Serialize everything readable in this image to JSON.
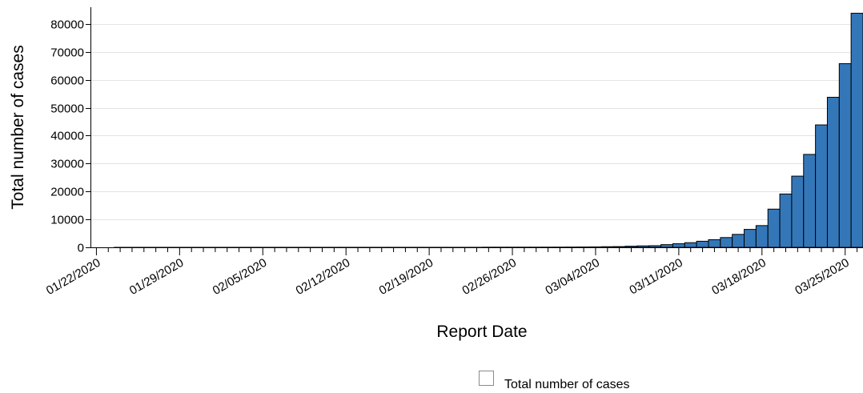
{
  "chart_data": {
    "type": "bar",
    "xlabel": "Report Date",
    "ylabel": "Total number of cases",
    "ylim": [
      0,
      86000
    ],
    "yticks": [
      0,
      10000,
      20000,
      30000,
      40000,
      50000,
      60000,
      70000,
      80000
    ],
    "xtick_labels": [
      "01/22/2020",
      "01/29/2020",
      "02/05/2020",
      "02/12/2020",
      "02/19/2020",
      "02/26/2020",
      "03/04/2020",
      "03/11/2020",
      "03/18/2020",
      "03/25/2020"
    ],
    "grid": true,
    "legend_position": "bottom-center",
    "bar_color": "#3477b9",
    "series": [
      {
        "name": "Total number of cases",
        "categories": [
          "01/22/2020",
          "01/23/2020",
          "01/24/2020",
          "01/25/2020",
          "01/26/2020",
          "01/27/2020",
          "01/28/2020",
          "01/29/2020",
          "01/30/2020",
          "01/31/2020",
          "02/01/2020",
          "02/02/2020",
          "02/03/2020",
          "02/04/2020",
          "02/05/2020",
          "02/06/2020",
          "02/07/2020",
          "02/08/2020",
          "02/09/2020",
          "02/10/2020",
          "02/11/2020",
          "02/12/2020",
          "02/13/2020",
          "02/14/2020",
          "02/15/2020",
          "02/16/2020",
          "02/17/2020",
          "02/18/2020",
          "02/19/2020",
          "02/20/2020",
          "02/21/2020",
          "02/22/2020",
          "02/23/2020",
          "02/24/2020",
          "02/25/2020",
          "02/26/2020",
          "02/27/2020",
          "02/28/2020",
          "02/29/2020",
          "03/01/2020",
          "03/02/2020",
          "03/03/2020",
          "03/04/2020",
          "03/05/2020",
          "03/06/2020",
          "03/07/2020",
          "03/08/2020",
          "03/09/2020",
          "03/10/2020",
          "03/11/2020",
          "03/12/2020",
          "03/13/2020",
          "03/14/2020",
          "03/15/2020",
          "03/16/2020",
          "03/17/2020",
          "03/18/2020",
          "03/19/2020",
          "03/20/2020",
          "03/21/2020",
          "03/22/2020",
          "03/23/2020",
          "03/24/2020",
          "03/25/2020",
          "03/26/2020"
        ],
        "values": [
          1,
          1,
          2,
          2,
          5,
          5,
          5,
          5,
          6,
          7,
          8,
          8,
          11,
          11,
          12,
          12,
          12,
          12,
          12,
          12,
          13,
          13,
          15,
          15,
          15,
          15,
          15,
          15,
          15,
          15,
          15,
          15,
          15,
          51,
          51,
          57,
          58,
          60,
          68,
          74,
          98,
          118,
          149,
          217,
          262,
          402,
          518,
          583,
          959,
          1281,
          1663,
          2179,
          2727,
          3499,
          4632,
          6421,
          7786,
          13680,
          19101,
          25493,
          33276,
          43847,
          53740,
          65778,
          83836
        ]
      }
    ]
  }
}
